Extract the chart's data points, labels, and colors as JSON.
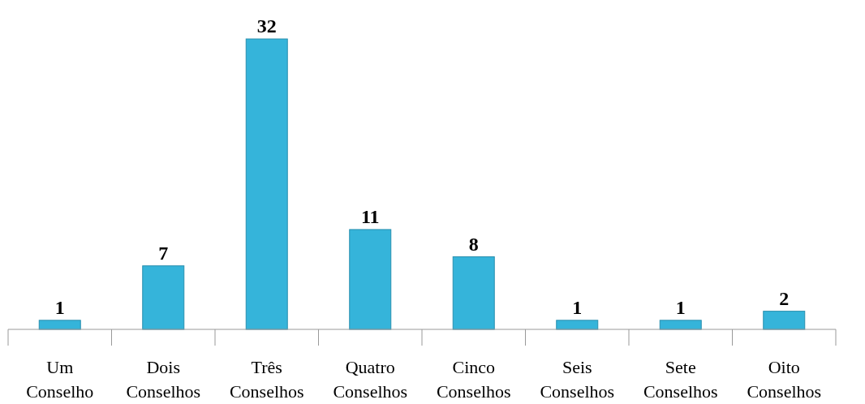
{
  "chart_data": {
    "type": "bar",
    "categories": [
      "Um Conselho",
      "Dois Conselhos",
      "Três Conselhos",
      "Quatro Conselhos",
      "Cinco Conselhos",
      "Seis Conselhos",
      "Sete Conselhos",
      "Oito Conselhos"
    ],
    "values": [
      1,
      7,
      32,
      11,
      8,
      1,
      1,
      2
    ],
    "color": "#35b4da",
    "data_labels": true
  }
}
